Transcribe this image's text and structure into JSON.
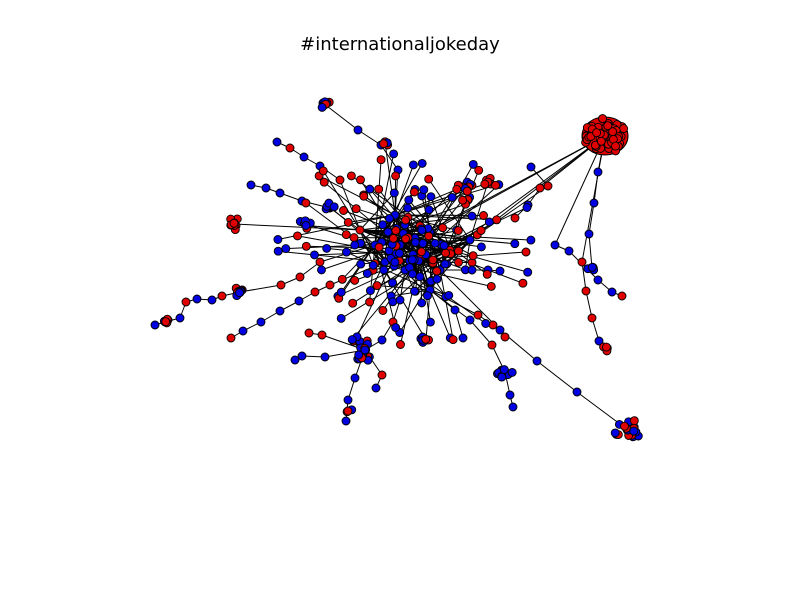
{
  "title": "#internationaljokeday",
  "colors": {
    "group_a": "#e00000",
    "group_b": "#0000e0",
    "edge": "#000000"
  }
}
